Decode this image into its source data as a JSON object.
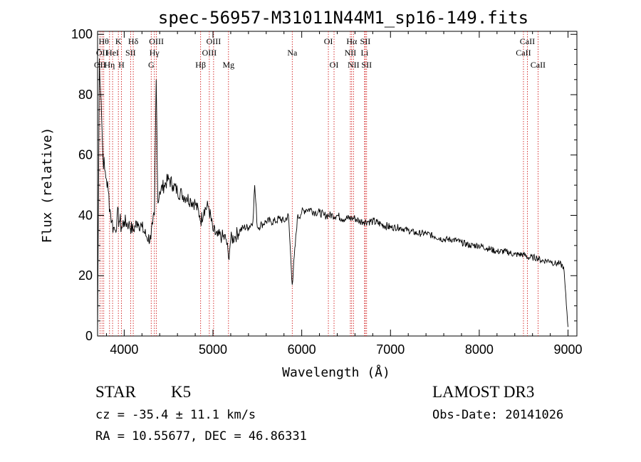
{
  "chart_data": {
    "type": "line",
    "title": "spec-56957-M31011N44M1_sp16-149.fits",
    "xlabel": "Wavelength (Å)",
    "ylabel": "Flux (relative)",
    "xlim": [
      3700,
      9100
    ],
    "ylim": [
      0,
      101
    ],
    "xticks": [
      4000,
      5000,
      6000,
      7000,
      8000,
      9000
    ],
    "xtick_labels": [
      "4000",
      "5000",
      "6000",
      "7000",
      "8000",
      "9000"
    ],
    "yticks": [
      0,
      20,
      40,
      60,
      80,
      100
    ],
    "ytick_labels": [
      "0",
      "20",
      "40",
      "60",
      "80",
      "100"
    ],
    "grid": false,
    "line_color": "#000000",
    "marker_color": "#cc0000",
    "series": [
      {
        "x": [
          3700,
          3720,
          3740,
          3760,
          3780,
          3800,
          3820,
          3840,
          3860,
          3880,
          3900,
          3920,
          3950,
          3970,
          4000,
          4050,
          4100,
          4150,
          4200,
          4250,
          4300,
          4320,
          4340,
          4360,
          4380,
          4400,
          4450,
          4500,
          4550,
          4600,
          4650,
          4700,
          4750,
          4800,
          4850,
          4861,
          4900,
          4950,
          5000,
          5050,
          5100,
          5150,
          5175,
          5200,
          5250,
          5300,
          5350,
          5400,
          5450,
          5470,
          5500,
          5550,
          5600,
          5650,
          5700,
          5750,
          5800,
          5850,
          5893,
          5950,
          6000,
          6050,
          6100,
          6150,
          6200,
          6250,
          6300,
          6350,
          6400,
          6450,
          6500,
          6563,
          6600,
          6650,
          6700,
          6750,
          6800,
          6900,
          7000,
          7100,
          7200,
          7300,
          7400,
          7500,
          7600,
          7700,
          7800,
          7900,
          8000,
          8100,
          8200,
          8300,
          8400,
          8500,
          8550,
          8600,
          8650,
          8700,
          8750,
          8800,
          8850,
          8900,
          8950,
          9000
        ],
        "y": [
          0,
          92,
          78,
          60,
          55,
          52,
          48,
          42,
          38,
          36,
          35,
          40,
          38,
          36,
          38,
          37,
          35,
          38,
          36,
          33,
          32,
          37,
          40,
          85,
          44,
          48,
          50,
          52,
          50,
          48,
          47,
          46,
          45,
          44,
          40,
          38,
          42,
          43,
          35,
          33,
          33,
          32,
          26,
          32,
          33,
          35,
          36,
          36,
          38,
          50,
          36,
          37,
          38,
          38,
          38,
          39,
          38,
          40,
          17,
          39,
          41,
          42,
          42,
          41,
          41,
          40,
          40,
          40,
          40,
          39,
          39,
          39,
          39,
          38,
          38,
          38,
          38,
          37,
          36,
          36,
          35,
          34,
          34,
          33,
          32,
          32,
          31,
          30,
          30,
          29,
          28,
          28,
          27,
          27,
          26,
          26,
          26,
          25,
          25,
          25,
          24,
          24,
          23,
          3
        ]
      }
    ],
    "lines": [
      {
        "wave": 3727,
        "label": "OII",
        "row": 3
      },
      {
        "wave": 3750,
        "label": "OII",
        "row": 2
      },
      {
        "wave": 3770,
        "label": "Hθ",
        "row": 1
      },
      {
        "wave": 3835,
        "label": "Hη",
        "row": 3
      },
      {
        "wave": 3869,
        "label": "HeI",
        "row": 2
      },
      {
        "wave": 3934,
        "label": "K",
        "row": 1
      },
      {
        "wave": 3968,
        "label": "H",
        "row": 3
      },
      {
        "wave": 4072,
        "label": "SII",
        "row": 2
      },
      {
        "wave": 4102,
        "label": "Hδ",
        "row": 1
      },
      {
        "wave": 4304,
        "label": "G",
        "row": 3
      },
      {
        "wave": 4340,
        "label": "Hγ",
        "row": 2
      },
      {
        "wave": 4363,
        "label": "OIII",
        "row": 1
      },
      {
        "wave": 4861,
        "label": "Hβ",
        "row": 3
      },
      {
        "wave": 4959,
        "label": "OIII",
        "row": 2
      },
      {
        "wave": 5007,
        "label": "OIII",
        "row": 1
      },
      {
        "wave": 5175,
        "label": "Mg",
        "row": 3
      },
      {
        "wave": 5893,
        "label": "Na",
        "row": 2
      },
      {
        "wave": 6300,
        "label": "OI",
        "row": 1
      },
      {
        "wave": 6364,
        "label": "OI",
        "row": 3
      },
      {
        "wave": 6548,
        "label": "NII",
        "row": 2
      },
      {
        "wave": 6563,
        "label": "Hα",
        "row": 1
      },
      {
        "wave": 6583,
        "label": "NII",
        "row": 3
      },
      {
        "wave": 6708,
        "label": "Li",
        "row": 2
      },
      {
        "wave": 6716,
        "label": "SII",
        "row": 1
      },
      {
        "wave": 6731,
        "label": "SII",
        "row": 3
      },
      {
        "wave": 8498,
        "label": "CaII",
        "row": 2
      },
      {
        "wave": 8542,
        "label": "CaII",
        "row": 1
      },
      {
        "wave": 8662,
        "label": "CaII",
        "row": 3
      }
    ]
  },
  "info": {
    "object_class": "STAR",
    "subclass": "K5",
    "survey": "LAMOST DR3",
    "redshift_text": "cz = -35.4 ± 11.1 km/s",
    "obs_date": "Obs-Date: 20141026",
    "coords": "RA =  10.55677, DEC =  46.86331"
  }
}
